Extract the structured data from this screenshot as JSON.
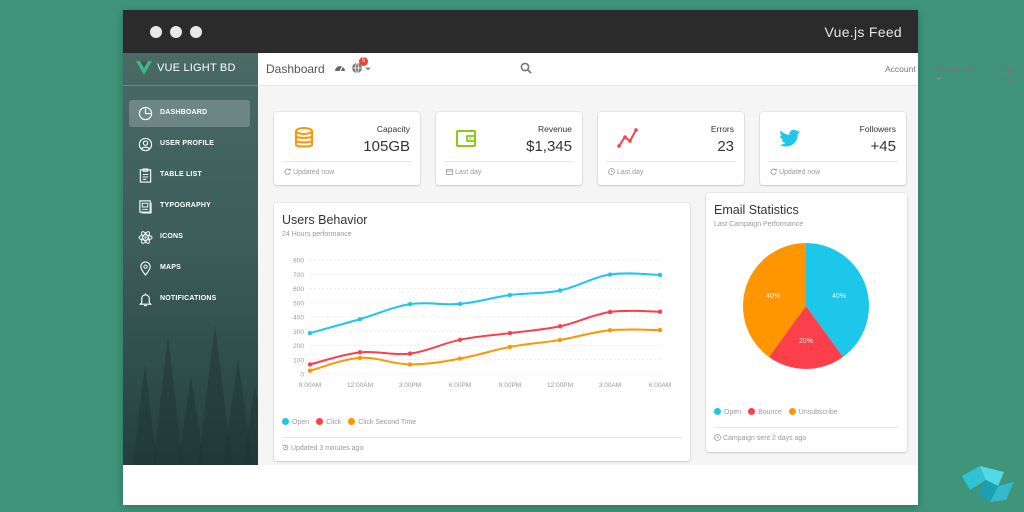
{
  "window": {
    "title": "Vue.js Feed"
  },
  "sidebar": {
    "brand": "VUE LIGHT BD",
    "items": [
      {
        "label": "DASHBOARD",
        "icon": "pie-chart-icon",
        "active": true
      },
      {
        "label": "USER PROFILE",
        "icon": "user-circle-icon",
        "active": false
      },
      {
        "label": "TABLE LIST",
        "icon": "clipboard-list-icon",
        "active": false
      },
      {
        "label": "TYPOGRAPHY",
        "icon": "typography-icon",
        "active": false
      },
      {
        "label": "ICONS",
        "icon": "atom-icon",
        "active": false
      },
      {
        "label": "MAPS",
        "icon": "map-pin-icon",
        "active": false
      },
      {
        "label": "NOTIFICATIONS",
        "icon": "bell-icon",
        "active": false
      }
    ]
  },
  "topnav": {
    "title": "Dashboard",
    "badge_count": "5",
    "links": {
      "account": "Account",
      "dropdown": "Dropdown",
      "logout": "Log out"
    }
  },
  "stats": [
    {
      "label": "Capacity",
      "value": "105GB",
      "footer": "Updated now",
      "icon": "database-icon",
      "color": "#ff9500"
    },
    {
      "label": "Revenue",
      "value": "$1,345",
      "footer": "Last day",
      "icon": "wallet-icon",
      "color": "#87cb16"
    },
    {
      "label": "Errors",
      "value": "23",
      "footer": "Last day",
      "icon": "pulse-icon",
      "color": "#fb404b"
    },
    {
      "label": "Followers",
      "value": "+45",
      "footer": "Updated now",
      "icon": "twitter-icon",
      "color": "#1dc7ea"
    }
  ],
  "users_behavior": {
    "title": "Users Behavior",
    "subtitle": "24 Hours performance",
    "footer": "Updated 3 minutes ago"
  },
  "email_stats": {
    "title": "Email Statistics",
    "subtitle": "Last Campaign Performance",
    "footer": "Campaign sent 2 days ago"
  },
  "chart_data": [
    {
      "type": "line",
      "categories": [
        "9:00AM",
        "12:00AM",
        "3:00PM",
        "6:00PM",
        "9:00PM",
        "12:00PM",
        "3:00AM",
        "6:00AM"
      ],
      "yticks": [
        0,
        100,
        200,
        300,
        400,
        500,
        600,
        700,
        800
      ],
      "ylim": [
        0,
        800
      ],
      "grid": true,
      "legend_position": "bottom-left",
      "series": [
        {
          "name": "Open",
          "color": "#1dc7ea",
          "values": [
            287,
            385,
            490,
            492,
            554,
            586,
            698,
            695
          ]
        },
        {
          "name": "Click",
          "color": "#fb404b",
          "values": [
            67,
            152,
            143,
            240,
            287,
            335,
            435,
            437
          ]
        },
        {
          "name": "Click Second Time",
          "color": "#ff9500",
          "values": [
            23,
            113,
            67,
            108,
            190,
            239,
            307,
            308
          ]
        }
      ]
    },
    {
      "type": "pie",
      "legend_position": "bottom-left",
      "slices": [
        {
          "name": "Open",
          "value": 40,
          "label": "40%",
          "color": "#1dc7ea"
        },
        {
          "name": "Bounce",
          "value": 20,
          "label": "20%",
          "color": "#fb404b"
        },
        {
          "name": "Unsubscribe",
          "value": 40,
          "label": "40%",
          "color": "#ff9500"
        }
      ]
    }
  ]
}
